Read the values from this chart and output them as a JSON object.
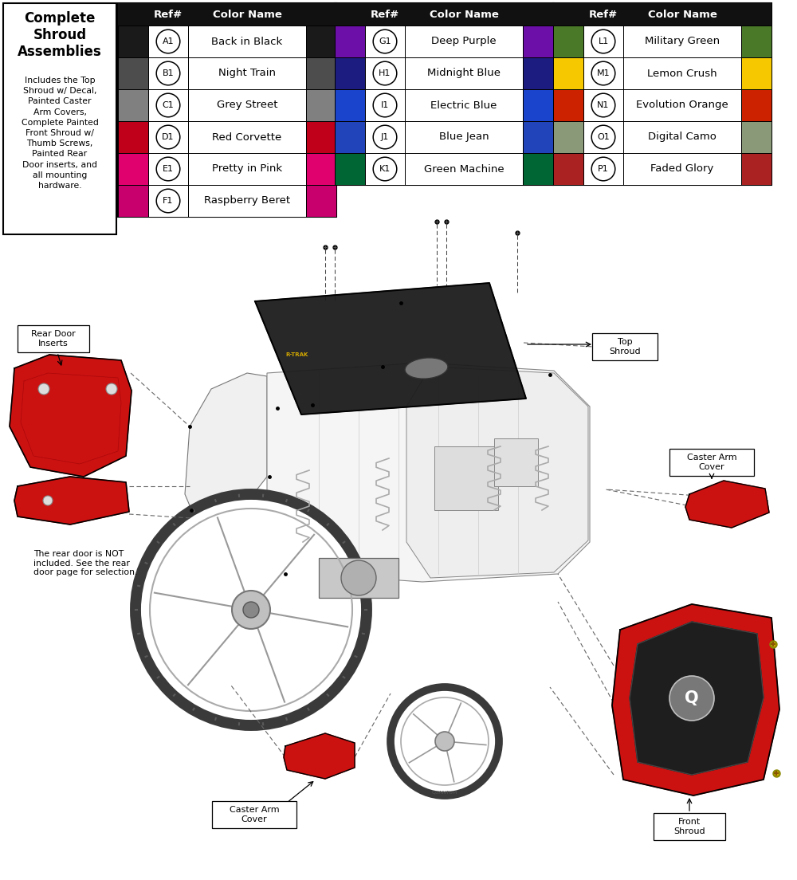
{
  "bg_color": "#ffffff",
  "header_bg": "#111111",
  "desc_title_bold": "Complete\nShroud\nAssemblies",
  "desc_body": "Includes the Top\nShroud w/ Decal,\nPainted Caster\nArm Covers,\nComplete Painted\nFront Shroud w/\nThumb Screws,\nPainted Rear\nDoor inserts, and\nall mounting\nhardware.",
  "table1_rows": [
    {
      "ref": "A1",
      "name": "Back in Black",
      "color": "#1a1a1a"
    },
    {
      "ref": "B1",
      "name": "Night Train",
      "color": "#4d4d4d"
    },
    {
      "ref": "C1",
      "name": "Grey Street",
      "color": "#808080"
    },
    {
      "ref": "D1",
      "name": "Red Corvette",
      "color": "#c0001a"
    },
    {
      "ref": "E1",
      "name": "Pretty in Pink",
      "color": "#e0006e"
    },
    {
      "ref": "F1",
      "name": "Raspberry Beret",
      "color": "#c8006e"
    }
  ],
  "table2_rows": [
    {
      "ref": "G1",
      "name": "Deep Purple",
      "color": "#6b0fa8"
    },
    {
      "ref": "H1",
      "name": "Midnight Blue",
      "color": "#1c1c80"
    },
    {
      "ref": "I1",
      "name": "Electric Blue",
      "color": "#1a44cc"
    },
    {
      "ref": "J1",
      "name": "Blue Jean",
      "color": "#2244bb"
    },
    {
      "ref": "K1",
      "name": "Green Machine",
      "color": "#006633"
    }
  ],
  "table3_rows": [
    {
      "ref": "L1",
      "name": "Military Green",
      "color": "#4a7a28"
    },
    {
      "ref": "M1",
      "name": "Lemon Crush",
      "color": "#f5c800"
    },
    {
      "ref": "N1",
      "name": "Evolution Orange",
      "color": "#cc2200"
    },
    {
      "ref": "O1",
      "name": "Digital Camo",
      "color": "#8a9a78"
    },
    {
      "ref": "P1",
      "name": "Faded Glory",
      "color": "#aa2222"
    }
  ],
  "label_rear_door": "Rear Door\nInserts",
  "label_top_shroud": "Top\nShroud",
  "label_caster_top": "Caster Arm\nCover",
  "label_caster_bot": "Caster Arm\nCover",
  "label_front_shroud": "Front\nShroud",
  "label_rear_note": "The rear door is NOT\nincluded. See the rear\ndoor page for selection.",
  "red_parts": "#cc1111",
  "dark_parts": "#1e1e1e",
  "rtrak_color": "#d4a800"
}
